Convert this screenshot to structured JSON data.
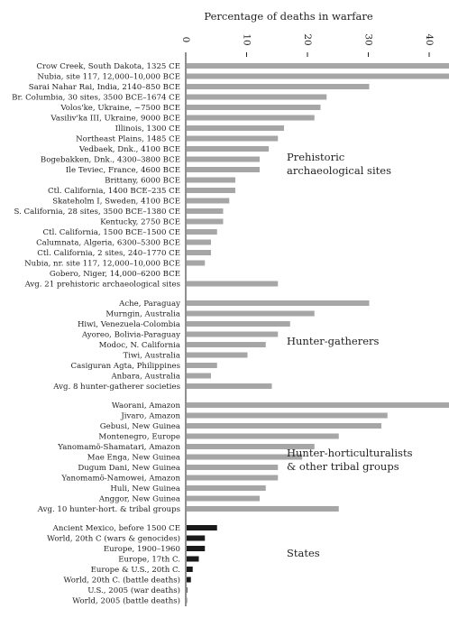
{
  "chart_data": {
    "type": "bar",
    "orientation": "horizontal",
    "title": "Percentage of deaths in warfare",
    "xlim": [
      0,
      70
    ],
    "xticks": [
      0,
      10,
      20,
      30,
      40,
      50,
      60,
      70
    ],
    "grid": false,
    "legend": "none",
    "colors": {
      "bar_gray": "#a6a6a6",
      "bar_black": "#1a1a1a",
      "axis": "#222222"
    },
    "groups": [
      {
        "label": "Prehistoric archaeological sites",
        "label_lines": [
          "Prehistoric",
          "archaeological sites"
        ],
        "color": "gray",
        "items": [
          {
            "label": "Crow Creek, South Dakota, 1325 CE",
            "value": 60
          },
          {
            "label": "Nubia, site 117, 12,000–10,000 BCE",
            "value": 46
          },
          {
            "label": "Sarai Nahar Rai, India, 2140–850 BCE",
            "value": 30
          },
          {
            "label": "Br. Columbia, 30 sites, 3500 BCE–1674 CE",
            "value": 23
          },
          {
            "label": "Volos'ke, Ukraine, ~7500 BCE",
            "value": 22
          },
          {
            "label": "Vasiliv'ka III, Ukraine, 9000 BCE",
            "value": 21
          },
          {
            "label": "Illinois, 1300 CE",
            "value": 16
          },
          {
            "label": "Northeast Plains, 1485 CE",
            "value": 15
          },
          {
            "label": "Vedbaek, Dnk., 4100 BCE",
            "value": 13.5
          },
          {
            "label": "Bogebakken, Dnk., 4300–3800 BCE",
            "value": 12
          },
          {
            "label": "Ile Teviec, France, 4600 BCE",
            "value": 12
          },
          {
            "label": "Brittany, 6000 BCE",
            "value": 8
          },
          {
            "label": "Ctl. California, 1400 BCE–235 CE",
            "value": 8
          },
          {
            "label": "Skateholm I, Sweden, 4100 BCE",
            "value": 7
          },
          {
            "label": "S. California, 28 sites, 3500 BCE–1380 CE",
            "value": 6
          },
          {
            "label": "Kentucky, 2750 BCE",
            "value": 6
          },
          {
            "label": "Ctl. California, 1500 BCE–1500 CE",
            "value": 5
          },
          {
            "label": "Calumnata, Algeria, 6300–5300 BCE",
            "value": 4
          },
          {
            "label": "Ctl. California, 2 sites, 240–1770 CE",
            "value": 4
          },
          {
            "label": "Nubia, nr. site 117, 12,000–10,000 BCE",
            "value": 3
          },
          {
            "label": "Gobero, Niger, 14,000–6200 BCE",
            "value": 0
          },
          {
            "label": "Avg. 21 prehistoric archaeological sites",
            "value": 15
          }
        ]
      },
      {
        "label": "Hunter-gatherers",
        "label_lines": [
          "Hunter-gatherers"
        ],
        "color": "gray",
        "items": [
          {
            "label": "Ache, Paraguay",
            "value": 30
          },
          {
            "label": "Murngin, Australia",
            "value": 21
          },
          {
            "label": "Hiwi, Venezuela-Colombia",
            "value": 17
          },
          {
            "label": "Ayoreo, Bolivia-Paraguay",
            "value": 15
          },
          {
            "label": "Modoc, N. California",
            "value": 13
          },
          {
            "label": "Tiwi, Australia",
            "value": 10
          },
          {
            "label": "Casiguran Agta, Philippines",
            "value": 5
          },
          {
            "label": "Anbara, Australia",
            "value": 4
          },
          {
            "label": "Avg. 8 hunter-gatherer societies",
            "value": 14
          }
        ]
      },
      {
        "label": "Hunter-horticulturalists & other tribal groups",
        "label_lines": [
          "Hunter-horticulturalists",
          "& other tribal groups"
        ],
        "color": "gray",
        "items": [
          {
            "label": "Waorani, Amazon",
            "value": 60
          },
          {
            "label": "Jivaro, Amazon",
            "value": 33
          },
          {
            "label": "Gebusi, New Guinea",
            "value": 32
          },
          {
            "label": "Montenegro, Europe",
            "value": 25
          },
          {
            "label": "Yanomamö-Shamatari, Amazon",
            "value": 21
          },
          {
            "label": "Mae Enga, New Guinea",
            "value": 19
          },
          {
            "label": "Dugum Dani, New Guinea",
            "value": 15
          },
          {
            "label": "Yanomamö-Namowei, Amazon",
            "value": 15
          },
          {
            "label": "Huli, New Guinea",
            "value": 13
          },
          {
            "label": "Anggor, New Guinea",
            "value": 12
          },
          {
            "label": "Avg. 10 hunter-hort. & tribal groups",
            "value": 25
          }
        ]
      },
      {
        "label": "States",
        "label_lines": [
          "States"
        ],
        "color": "black",
        "items": [
          {
            "label": "Ancient Mexico, before 1500 CE",
            "value": 5
          },
          {
            "label": "World, 20th C (wars & genocides)",
            "value": 3
          },
          {
            "label": "Europe, 1900–1960",
            "value": 3
          },
          {
            "label": "Europe, 17th C.",
            "value": 2
          },
          {
            "label": "Europe & U.S., 20th C.",
            "value": 1
          },
          {
            "label": "World, 20th C. (battle deaths)",
            "value": 0.7
          },
          {
            "label": "U.S., 2005 (war deaths)",
            "value": 0.1
          },
          {
            "label": "World, 2005 (battle deaths)",
            "value": 0.05
          }
        ]
      }
    ]
  }
}
